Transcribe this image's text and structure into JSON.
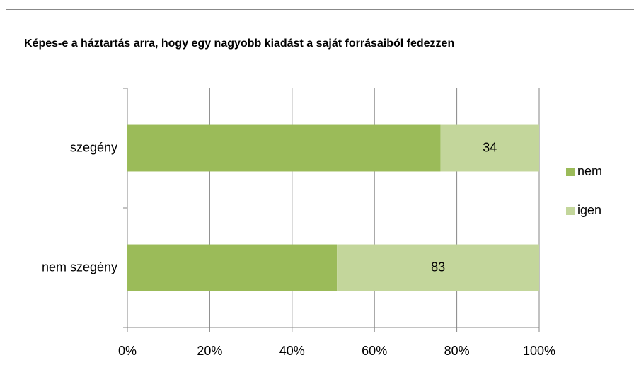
{
  "chart_data": {
    "type": "bar",
    "orientation": "horizontal",
    "stacking": "percent",
    "title": "Képes-e a háztartás arra, hogy egy nagyobb kiadást a saját forrásaiból fedezzen",
    "categories": [
      "szegény",
      "nem szegény"
    ],
    "series": [
      {
        "name": "nem",
        "color": "#9bbb59",
        "values": [
          108,
          86
        ]
      },
      {
        "name": "igen",
        "color": "#c3d69b",
        "values": [
          34,
          83
        ],
        "data_labels": true
      }
    ],
    "xlim": [
      0,
      100
    ],
    "xticks": [
      {
        "value": 0,
        "label": "0%"
      },
      {
        "value": 20,
        "label": "20%"
      },
      {
        "value": 40,
        "label": "40%"
      },
      {
        "value": 60,
        "label": "60%"
      },
      {
        "value": 80,
        "label": "80%"
      },
      {
        "value": 100,
        "label": "100%"
      }
    ],
    "grid": true,
    "legend": "right"
  }
}
